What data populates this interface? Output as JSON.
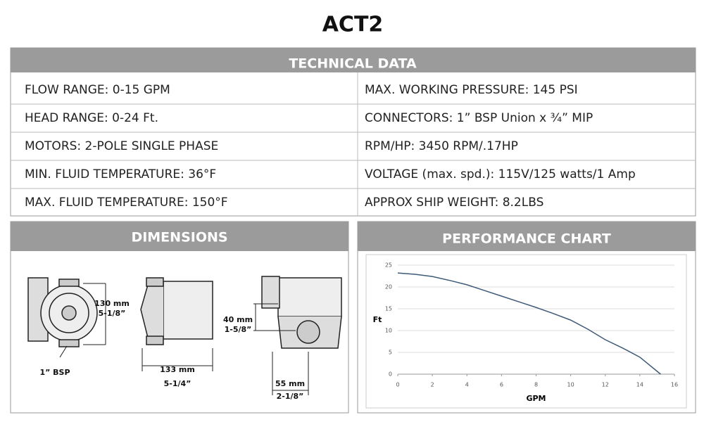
{
  "title": "ACT2",
  "technical_data": {
    "heading": "TECHNICAL DATA",
    "rows": [
      [
        "FLOW RANGE: 0-15 GPM",
        "MAX. WORKING PRESSURE: 145 PSI"
      ],
      [
        "HEAD RANGE: 0-24 Ft.",
        "CONNECTORS: 1” BSP Union x ¾” MIP"
      ],
      [
        "MOTORS: 2-POLE SINGLE PHASE",
        "RPM/HP: 3450 RPM/.17HP"
      ],
      [
        "MIN. FLUID TEMPERATURE: 36°F",
        "VOLTAGE (max. spd.): 115V/125 watts/1 Amp"
      ],
      [
        "MAX. FLUID TEMPERATURE: 150°F",
        "APPROX SHIP WEIGHT: 8.2LBS"
      ]
    ]
  },
  "dimensions": {
    "heading": "DIMENSIONS",
    "height_mm": "130 mm",
    "height_in": "5-1/8”",
    "port": "1” BSP",
    "width_mm": "133 mm",
    "width_in": "5-1/4”",
    "offset_mm": "40 mm",
    "offset_in": "1-5/8”",
    "depth_mm": "55 mm",
    "depth_in": "2-1/8”"
  },
  "performance_heading": "PERFORMANCE CHART",
  "chart_data": {
    "type": "line",
    "x_label": "GPM",
    "y_label": "Ft",
    "x": [
      0,
      1,
      2,
      3,
      4,
      5,
      6,
      7,
      8,
      9,
      10,
      11,
      12,
      13,
      14,
      15.2
    ],
    "series": [
      {
        "name": "ACT2",
        "color": "#3d5a78",
        "values": [
          23.2,
          22.9,
          22.4,
          21.5,
          20.5,
          19.2,
          17.9,
          16.6,
          15.3,
          13.9,
          12.4,
          10.3,
          7.9,
          6.0,
          3.9,
          0
        ]
      }
    ],
    "xlim": [
      0,
      16
    ],
    "xticks": [
      0,
      2,
      4,
      6,
      8,
      10,
      12,
      14,
      16
    ],
    "ylim": [
      0,
      25
    ],
    "yticks": [
      0,
      5,
      10,
      15,
      20,
      25
    ],
    "grid": true
  }
}
